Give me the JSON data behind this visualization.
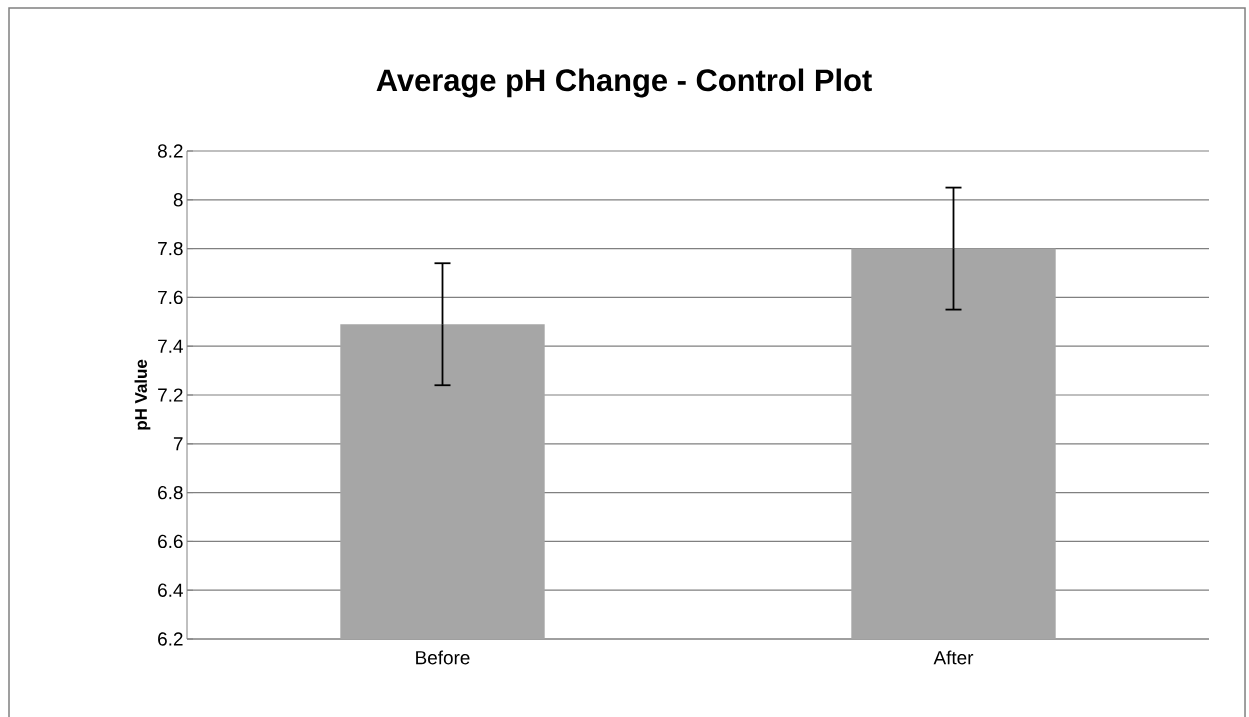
{
  "chart_data": {
    "type": "bar",
    "title": "Average pH Change - Control Plot",
    "ylabel": "pH Value",
    "categories": [
      "Before",
      "After"
    ],
    "values": [
      7.49,
      7.8
    ],
    "errors": [
      0.25,
      0.25
    ],
    "color": "#a6a6a6",
    "ylim": [
      6.2,
      8.2
    ],
    "yticks": [
      6.2,
      6.4,
      6.6,
      6.8,
      7,
      7.2,
      7.4,
      7.6,
      7.8,
      8,
      8.2
    ],
    "grid": "y"
  }
}
